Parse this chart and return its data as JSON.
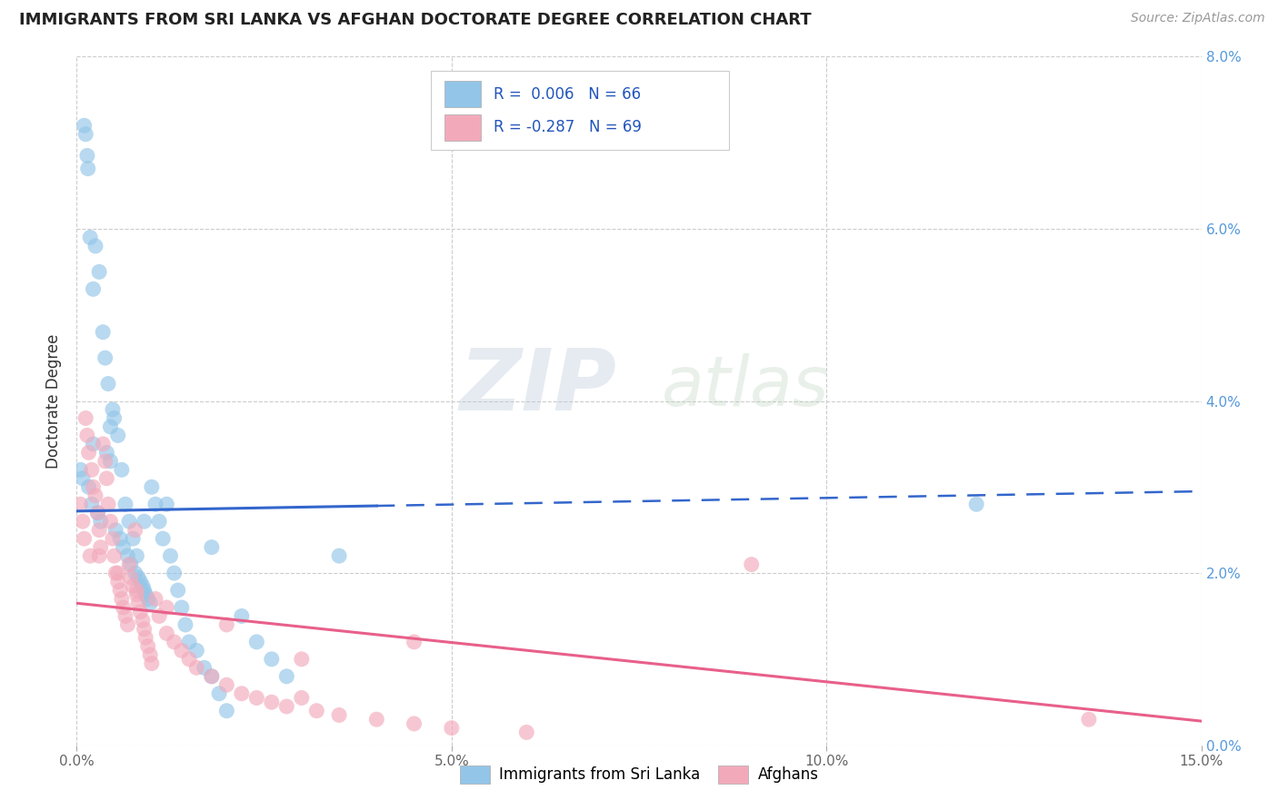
{
  "title": "IMMIGRANTS FROM SRI LANKA VS AFGHAN DOCTORATE DEGREE CORRELATION CHART",
  "source": "Source: ZipAtlas.com",
  "ylabel": "Doctorate Degree",
  "x_tick_labels": [
    "0.0%",
    "5.0%",
    "10.0%",
    "15.0%"
  ],
  "x_tick_vals": [
    0.0,
    5.0,
    10.0,
    15.0
  ],
  "y_tick_labels": [
    "0.0%",
    "2.0%",
    "4.0%",
    "6.0%",
    "8.0%"
  ],
  "y_tick_vals": [
    0.0,
    2.0,
    4.0,
    6.0,
    8.0
  ],
  "xlim": [
    0.0,
    15.0
  ],
  "ylim": [
    0.0,
    8.0
  ],
  "sri_lanka_color": "#92C5E8",
  "afghan_color": "#F2AABB",
  "sri_lanka_line_color": "#3366CC",
  "afghan_line_color": "#E8608A",
  "sri_lanka_R": "0.006",
  "sri_lanka_N": "66",
  "afghan_R": "-0.287",
  "afghan_N": "69",
  "legend_label_1": "Immigrants from Sri Lanka",
  "legend_label_2": "Afghans",
  "watermark_zip": "ZIP",
  "watermark_atlas": "atlas",
  "sri_lanka_x": [
    0.05,
    0.08,
    0.1,
    0.12,
    0.14,
    0.15,
    0.16,
    0.18,
    0.2,
    0.22,
    0.25,
    0.28,
    0.3,
    0.32,
    0.35,
    0.38,
    0.4,
    0.42,
    0.45,
    0.48,
    0.5,
    0.52,
    0.55,
    0.58,
    0.6,
    0.62,
    0.65,
    0.68,
    0.7,
    0.72,
    0.75,
    0.78,
    0.8,
    0.82,
    0.85,
    0.88,
    0.9,
    0.92,
    0.95,
    0.98,
    1.0,
    1.05,
    1.1,
    1.15,
    1.2,
    1.25,
    1.3,
    1.35,
    1.4,
    1.45,
    1.5,
    1.6,
    1.7,
    1.8,
    1.9,
    2.0,
    2.2,
    2.4,
    2.6,
    2.8,
    0.22,
    0.45,
    0.9,
    1.8,
    3.5,
    12.0
  ],
  "sri_lanka_y": [
    3.2,
    3.1,
    7.2,
    7.1,
    6.85,
    6.7,
    3.0,
    5.9,
    2.8,
    3.5,
    5.8,
    2.7,
    5.5,
    2.6,
    4.8,
    4.5,
    3.4,
    4.2,
    3.3,
    3.9,
    3.8,
    2.5,
    3.6,
    2.4,
    3.2,
    2.3,
    2.8,
    2.2,
    2.6,
    2.1,
    2.4,
    2.0,
    2.2,
    1.95,
    1.9,
    1.85,
    1.8,
    1.75,
    1.7,
    1.65,
    3.0,
    2.8,
    2.6,
    2.4,
    2.8,
    2.2,
    2.0,
    1.8,
    1.6,
    1.4,
    1.2,
    1.1,
    0.9,
    0.8,
    0.6,
    0.4,
    1.5,
    1.2,
    1.0,
    0.8,
    5.3,
    3.7,
    2.6,
    2.3,
    2.2,
    2.8
  ],
  "afghan_x": [
    0.05,
    0.08,
    0.1,
    0.12,
    0.14,
    0.16,
    0.18,
    0.2,
    0.22,
    0.25,
    0.28,
    0.3,
    0.32,
    0.35,
    0.38,
    0.4,
    0.42,
    0.45,
    0.48,
    0.5,
    0.52,
    0.55,
    0.58,
    0.6,
    0.62,
    0.65,
    0.68,
    0.7,
    0.72,
    0.75,
    0.78,
    0.8,
    0.82,
    0.85,
    0.88,
    0.9,
    0.92,
    0.95,
    0.98,
    1.0,
    1.05,
    1.1,
    1.2,
    1.3,
    1.4,
    1.5,
    1.6,
    1.8,
    2.0,
    2.2,
    2.4,
    2.6,
    2.8,
    3.0,
    3.2,
    3.5,
    4.0,
    4.5,
    5.0,
    6.0,
    0.3,
    0.55,
    0.8,
    1.2,
    2.0,
    3.0,
    4.5,
    9.0,
    13.5
  ],
  "afghan_y": [
    2.8,
    2.6,
    2.4,
    3.8,
    3.6,
    3.4,
    2.2,
    3.2,
    3.0,
    2.9,
    2.7,
    2.5,
    2.3,
    3.5,
    3.3,
    3.1,
    2.8,
    2.6,
    2.4,
    2.2,
    2.0,
    1.9,
    1.8,
    1.7,
    1.6,
    1.5,
    1.4,
    2.1,
    1.95,
    1.85,
    2.5,
    1.75,
    1.65,
    1.55,
    1.45,
    1.35,
    1.25,
    1.15,
    1.05,
    0.95,
    1.7,
    1.5,
    1.3,
    1.2,
    1.1,
    1.0,
    0.9,
    0.8,
    0.7,
    0.6,
    0.55,
    0.5,
    0.45,
    0.55,
    0.4,
    0.35,
    0.3,
    0.25,
    0.2,
    0.15,
    2.2,
    2.0,
    1.8,
    1.6,
    1.4,
    1.0,
    1.2,
    2.1,
    0.3
  ],
  "sl_trend_x0": 0.0,
  "sl_trend_x1": 15.0,
  "sl_trend_y0": 2.72,
  "sl_trend_y1": 2.95,
  "sl_solid_end_x": 4.0,
  "afg_trend_x0": 0.0,
  "afg_trend_x1": 15.0,
  "afg_trend_y0": 1.65,
  "afg_trend_y1": 0.28
}
